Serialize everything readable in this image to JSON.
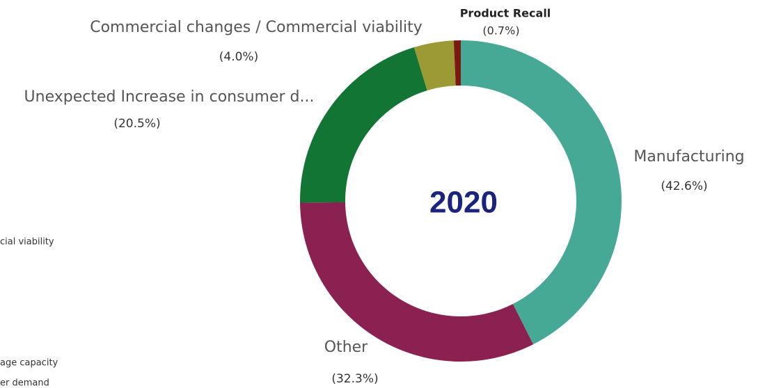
{
  "chart_data": {
    "type": "donut",
    "center_label": "2020",
    "categories": [
      "Manufacturing",
      "Other",
      "Unexpected Increase in consumer d...",
      "Commercial changes / Commercial viability",
      "Product Recall"
    ],
    "values": [
      42.6,
      32.3,
      20.5,
      4.0,
      0.7
    ],
    "value_labels": [
      "(42.6%)",
      "(32.3%)",
      "(20.5%)",
      "(4.0%)",
      "(0.7%)"
    ],
    "colors": [
      "#46a996",
      "#8a2150",
      "#127534",
      "#9b9a35",
      "#7a1a10"
    ],
    "cropped_legend": [
      "cial viability",
      "age capacity",
      "er demand"
    ]
  }
}
